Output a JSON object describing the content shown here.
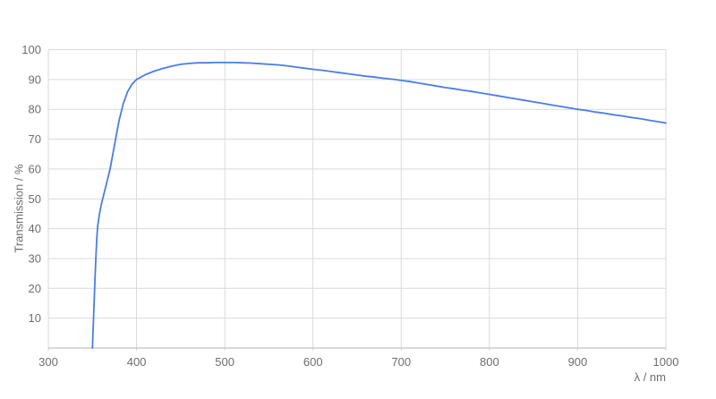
{
  "chart": {
    "colors": {
      "line": "#4b7de6",
      "grid": "#d9d9d9",
      "axis": "#b3b3b3",
      "text": "#6e6e6e",
      "background": "#ffffff"
    }
  },
  "chart_data": {
    "type": "line",
    "title": "",
    "xlabel": "λ / nm",
    "ylabel": "Transmission / %",
    "xlim": [
      300,
      1000
    ],
    "ylim": [
      0,
      100
    ],
    "x_ticks": [
      300,
      400,
      500,
      600,
      700,
      800,
      900,
      1000
    ],
    "y_ticks": [
      10,
      20,
      30,
      40,
      50,
      60,
      70,
      80,
      90,
      100
    ],
    "grid": "on",
    "legend": "none",
    "series": [
      {
        "name": "Transmission",
        "x": [
          350,
          351,
          352,
          353,
          354,
          355,
          356,
          358,
          360,
          362,
          365,
          370,
          375,
          380,
          385,
          390,
          395,
          400,
          410,
          420,
          430,
          440,
          450,
          460,
          470,
          480,
          490,
          500,
          510,
          520,
          530,
          540,
          550,
          560,
          570,
          580,
          590,
          600,
          610,
          620,
          630,
          640,
          650,
          660,
          670,
          680,
          690,
          700,
          710,
          720,
          730,
          740,
          750,
          760,
          770,
          780,
          790,
          800,
          810,
          820,
          830,
          840,
          850,
          860,
          870,
          880,
          890,
          900,
          910,
          920,
          930,
          940,
          950,
          960,
          970,
          980,
          990,
          1000
        ],
        "y": [
          0,
          8,
          16,
          24,
          31,
          37,
          41,
          45,
          48,
          50.5,
          54,
          60,
          68,
          76,
          82,
          86,
          88.5,
          90,
          91.6,
          92.8,
          93.7,
          94.5,
          95.1,
          95.4,
          95.6,
          95.6,
          95.7,
          95.7,
          95.7,
          95.6,
          95.5,
          95.3,
          95.1,
          94.9,
          94.6,
          94.2,
          93.8,
          93.4,
          93.1,
          92.7,
          92.3,
          91.9,
          91.5,
          91.1,
          90.8,
          90.4,
          90.1,
          89.7,
          89.3,
          88.8,
          88.3,
          87.8,
          87.3,
          86.9,
          86.4,
          86,
          85.5,
          85,
          84.5,
          84,
          83.5,
          83,
          82.5,
          82,
          81.5,
          81,
          80.5,
          80,
          79.6,
          79.1,
          78.7,
          78.2,
          77.8,
          77.3,
          76.9,
          76.4,
          75.9,
          75.4
        ]
      }
    ]
  }
}
